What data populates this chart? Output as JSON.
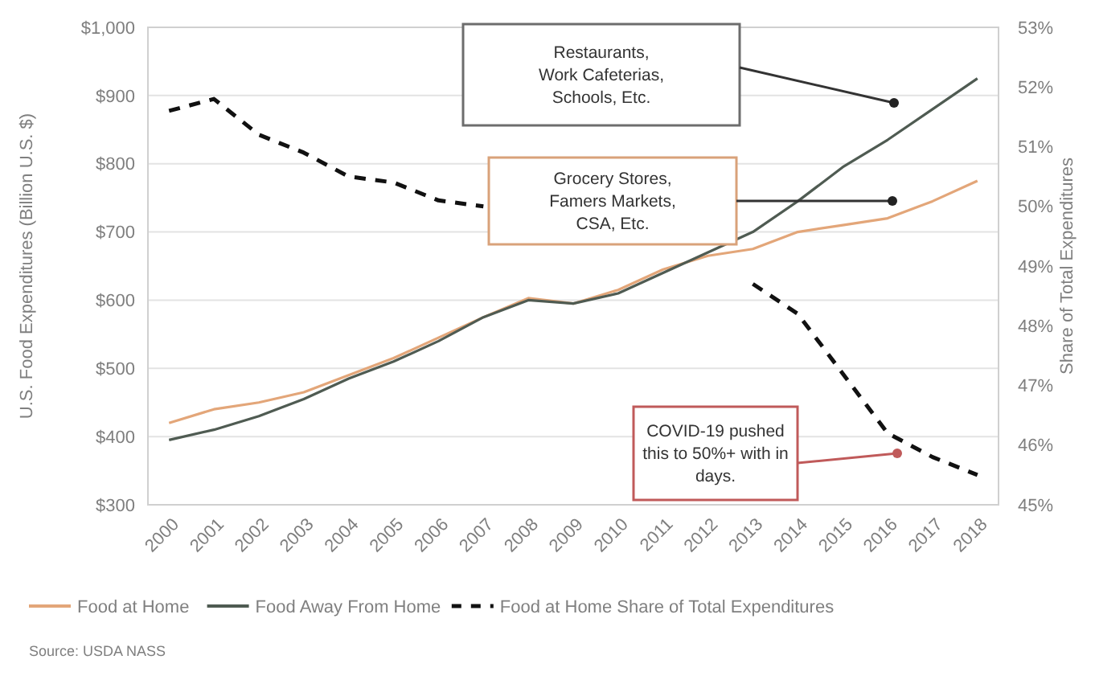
{
  "chart_data": {
    "type": "line",
    "ylabel": "U.S. Food Expenditures (Billion U.S. $)",
    "y2label": "Share of Total Expenditures",
    "categories": [
      "2000",
      "2001",
      "2002",
      "2003",
      "2004",
      "2005",
      "2006",
      "2007",
      "2008",
      "2009",
      "2010",
      "2011",
      "2012",
      "2013",
      "2014",
      "2015",
      "2016",
      "2017",
      "2018"
    ],
    "series": [
      {
        "name": "Food at Home",
        "color": "#e3a679",
        "values": [
          420,
          440,
          450,
          465,
          490,
          515,
          545,
          575,
          603,
          595,
          615,
          645,
          665,
          675,
          700,
          710,
          720,
          745,
          775
        ]
      },
      {
        "name": "Food Away From Home",
        "color": "#4f5b52",
        "values": [
          395,
          410,
          430,
          455,
          485,
          510,
          540,
          575,
          600,
          595,
          610,
          640,
          670,
          700,
          745,
          795,
          835,
          880,
          925
        ]
      },
      {
        "name": "Food at Home Share of Total Expenditures",
        "color": "#111111",
        "axis": "y2",
        "line_style": "dashed",
        "values": [
          51.6,
          51.8,
          51.2,
          50.9,
          50.5,
          50.4,
          50.1,
          50.0,
          null,
          null,
          null,
          null,
          null,
          48.7,
          48.2,
          47.2,
          46.2,
          45.8,
          45.5
        ]
      }
    ],
    "ylim": [
      300,
      1000
    ],
    "yticks": [
      {
        "value": 300,
        "label": "$300"
      },
      {
        "value": 400,
        "label": "$400"
      },
      {
        "value": 500,
        "label": "$500"
      },
      {
        "value": 600,
        "label": "$600"
      },
      {
        "value": 700,
        "label": "$700"
      },
      {
        "value": 800,
        "label": "$800"
      },
      {
        "value": 900,
        "label": "$900"
      },
      {
        "value": 1000,
        "label": "$1,000"
      }
    ],
    "y2lim": [
      45,
      53
    ],
    "y2ticks": [
      {
        "value": 45,
        "label": "45%"
      },
      {
        "value": 46,
        "label": "46%"
      },
      {
        "value": 47,
        "label": "47%"
      },
      {
        "value": 48,
        "label": "48%"
      },
      {
        "value": 49,
        "label": "49%"
      },
      {
        "value": 50,
        "label": "50%"
      },
      {
        "value": 51,
        "label": "51%"
      },
      {
        "value": 52,
        "label": "52%"
      },
      {
        "value": 53,
        "label": "53%"
      }
    ],
    "grid": "y",
    "legend": "bottom",
    "annotations": [
      "Restaurants,\nWork Cafeterias,\nSchools, Etc.",
      "Grocery Stores,\nFamers Markets,\nCSA, Etc.",
      "COVID-19 pushed\nthis to 50%+ with in\ndays.",
      "Source: USDA NASS"
    ]
  }
}
